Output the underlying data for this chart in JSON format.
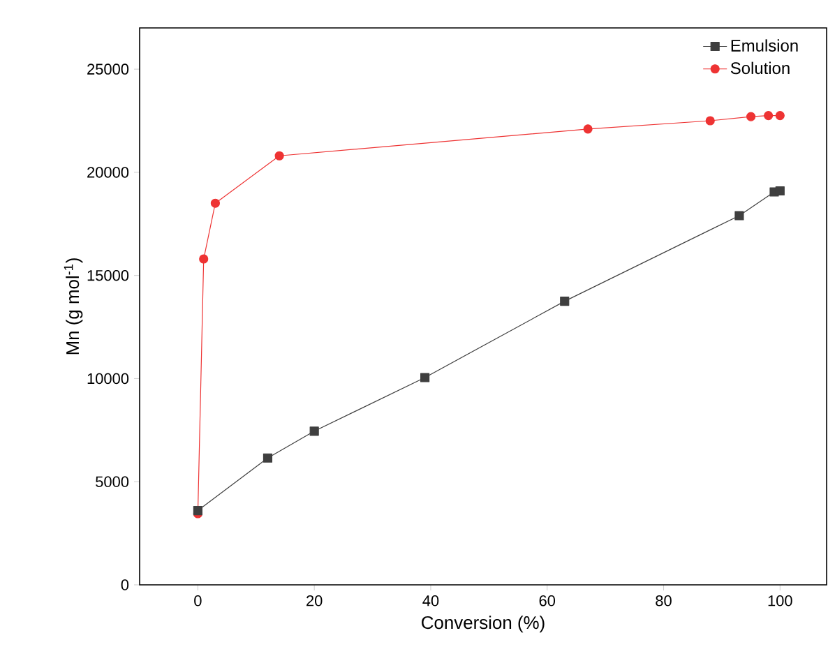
{
  "chart_data": {
    "type": "line",
    "xlabel": "Conversion (%)",
    "ylabel": "Mn (g mol$^{-1}$)",
    "xlim": [
      -10,
      108
    ],
    "ylim": [
      0,
      27000
    ],
    "xticks": [
      0,
      20,
      40,
      60,
      80,
      100
    ],
    "yticks": [
      0,
      5000,
      10000,
      15000,
      20000,
      25000
    ],
    "legend": "top right",
    "grid": false,
    "line_style": "solid",
    "series": [
      {
        "name": "Emulsion",
        "color": "#3f3f3f",
        "marker": "square",
        "x": [
          0,
          12,
          20,
          39,
          63,
          93,
          99,
          100
        ],
        "values": [
          3600,
          6150,
          7450,
          10050,
          13750,
          17900,
          19050,
          19100
        ]
      },
      {
        "name": "Solution",
        "color": "#ee3333",
        "marker": "circle",
        "x": [
          0,
          1,
          3,
          14,
          67,
          88,
          95,
          98,
          100
        ],
        "values": [
          3450,
          15800,
          18500,
          20800,
          22100,
          22500,
          22700,
          22750,
          22750
        ]
      }
    ]
  }
}
